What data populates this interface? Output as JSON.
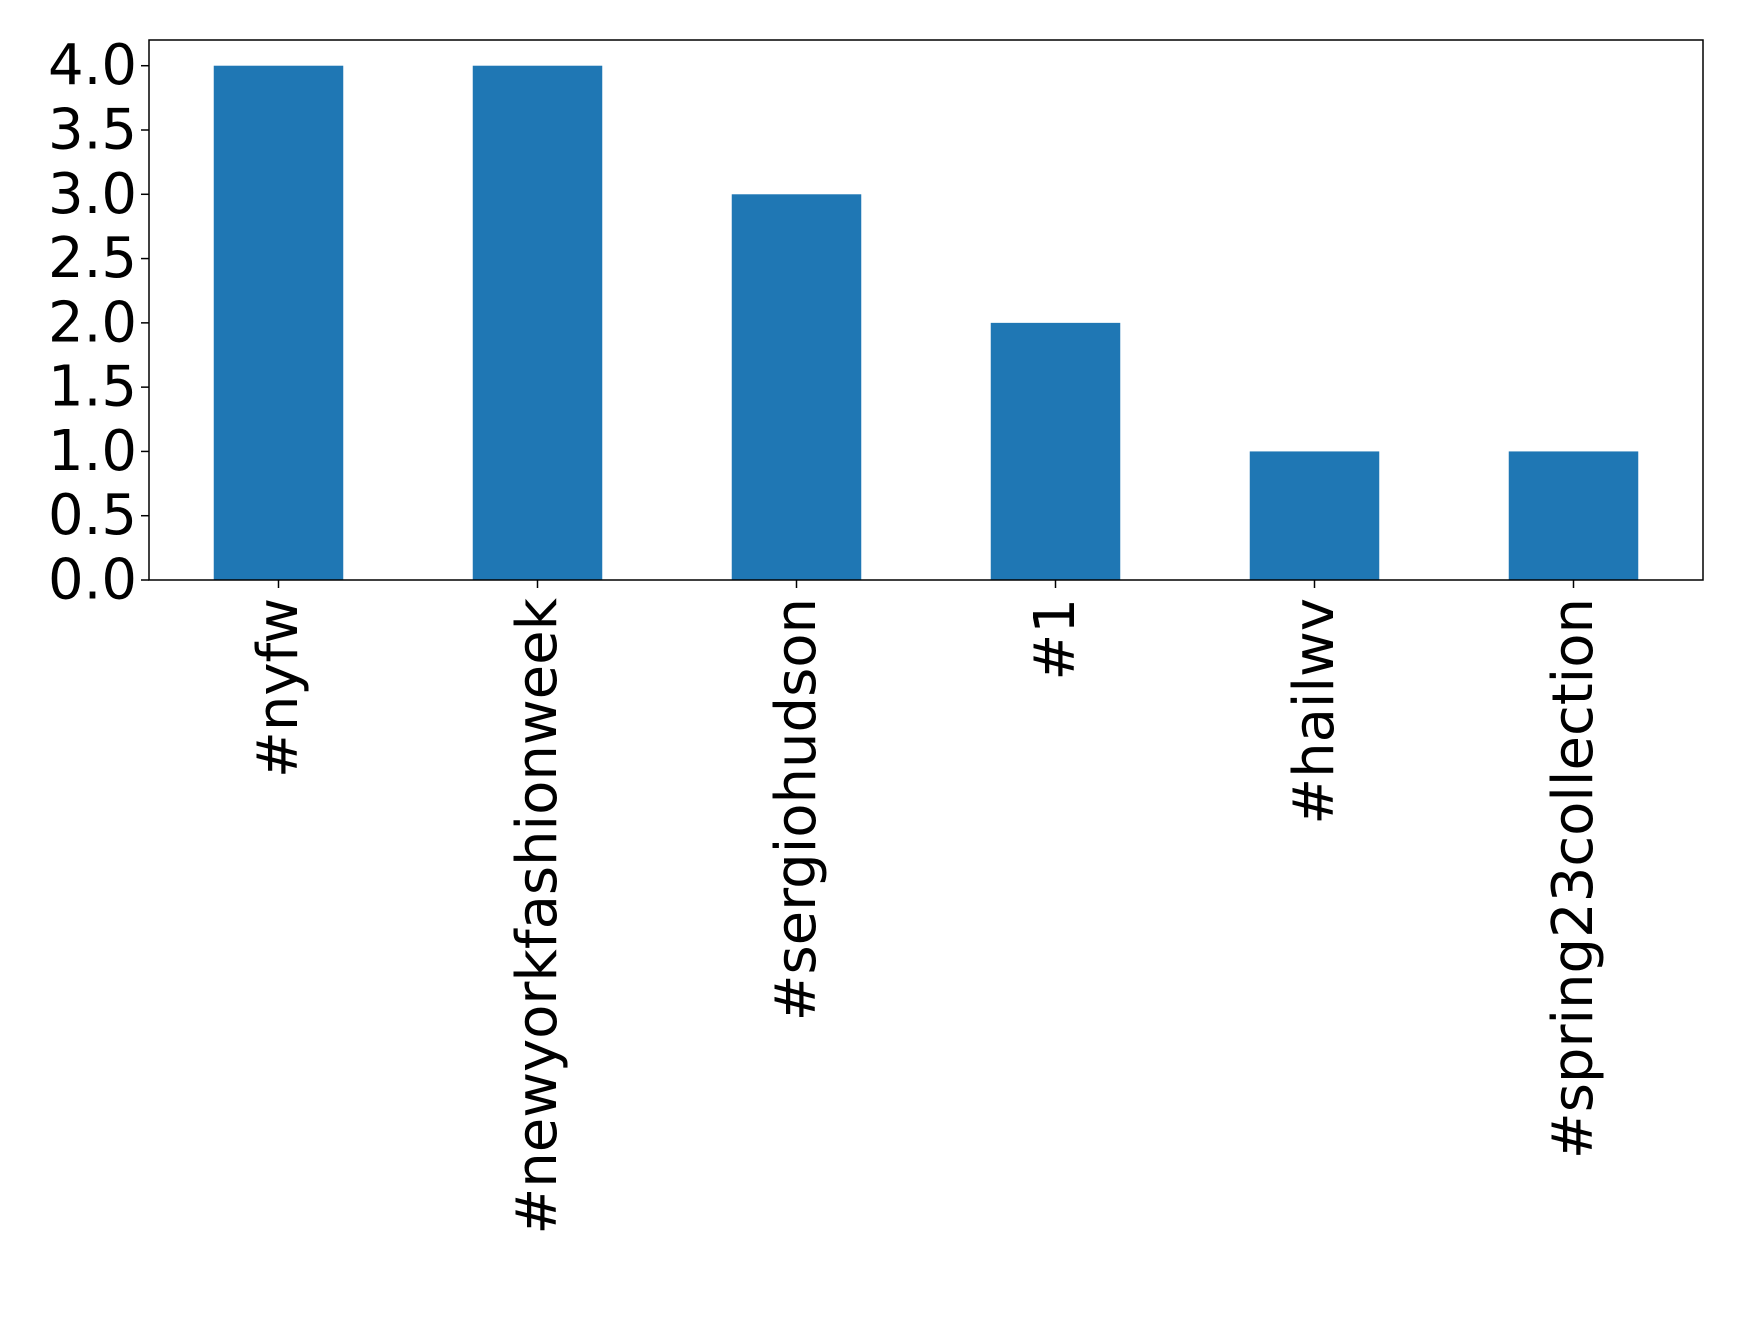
{
  "chart_data": {
    "type": "bar",
    "title": "",
    "xlabel": "",
    "ylabel": "",
    "categories": [
      "#nyfw",
      "#newyorkfashionweek",
      "#sergiohudson",
      "#1",
      "#hailwv",
      "#spring23collection"
    ],
    "values": [
      4,
      4,
      3,
      2,
      1,
      1
    ],
    "ylim": [
      0,
      4.2
    ],
    "yticks": [
      0.0,
      0.5,
      1.0,
      1.5,
      2.0,
      2.5,
      3.0,
      3.5,
      4.0
    ],
    "ytick_labels": [
      "0.0",
      "0.5",
      "1.0",
      "1.5",
      "2.0",
      "2.5",
      "3.0",
      "3.5",
      "4.0"
    ],
    "grid": false,
    "legend": "none",
    "bar_color": "#1f77b4"
  }
}
